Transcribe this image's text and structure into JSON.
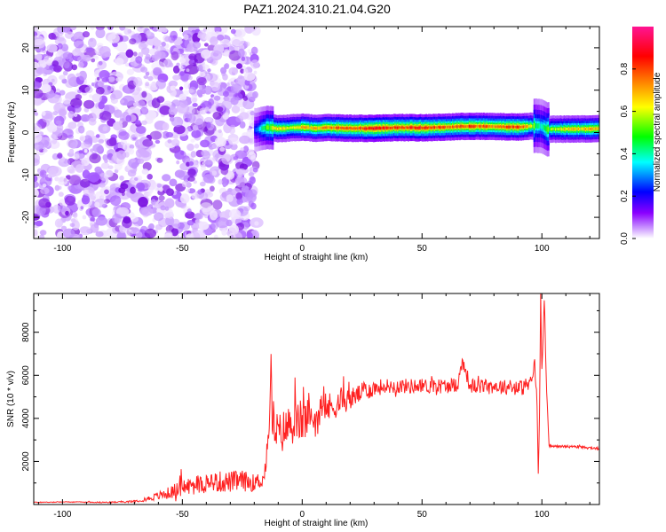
{
  "title": "PAZ1.2024.310.21.04.G20",
  "chart_data": [
    {
      "type": "heatmap",
      "xlabel": "Height of straight line (km)",
      "ylabel": "Frequency (Hz)",
      "xlim": [
        -112,
        124
      ],
      "ylim": [
        -25,
        25
      ],
      "xticks": [
        -100,
        -50,
        0,
        50,
        100
      ],
      "xtick_labels": [
        "-100",
        "-50",
        "0",
        "50",
        "100"
      ],
      "yticks": [
        -20,
        -10,
        0,
        10,
        20
      ],
      "ytick_labels": [
        "-20",
        "-10",
        "0",
        "10",
        "20"
      ],
      "noise_region_x": [
        -112,
        -19
      ],
      "signal_band": {
        "x": [
          -20,
          -15,
          -10,
          -5,
          0,
          5,
          10,
          20,
          30,
          40,
          50,
          60,
          70,
          80,
          90,
          95,
          98,
          100,
          102,
          110,
          124
        ],
        "center_freq_hz": [
          0.6,
          1.2,
          0.9,
          1.1,
          1.3,
          1.0,
          1.2,
          1.0,
          1.0,
          1.2,
          1.1,
          1.3,
          1.5,
          1.4,
          1.3,
          1.5,
          1.6,
          1.4,
          0.8,
          0.8,
          0.9
        ],
        "peak_amplitude": [
          0.25,
          0.55,
          0.7,
          0.6,
          0.75,
          0.72,
          0.8,
          0.85,
          0.9,
          0.85,
          0.9,
          0.8,
          0.85,
          0.8,
          0.85,
          0.7,
          0.45,
          0.4,
          0.55,
          0.7,
          0.75
        ]
      },
      "colorbar": {
        "label": "Normalized spectral amplitude",
        "range": [
          0,
          1
        ],
        "ticks": [
          0.0,
          0.2,
          0.4,
          0.6,
          0.8
        ],
        "tick_labels": [
          "0.0",
          "0.2",
          "0.4",
          "0.6",
          "0.8"
        ],
        "colors": [
          "#ffffff",
          "#8b00ff",
          "#0000ff",
          "#00ffff",
          "#00ff00",
          "#ffff00",
          "#ff7f00",
          "#ff0000",
          "#ff1493"
        ]
      }
    },
    {
      "type": "line",
      "xlabel": "Height of straight line (km)",
      "ylabel": "SNR (10 * v/v)",
      "xlim": [
        -112,
        124
      ],
      "ylim": [
        0,
        9800
      ],
      "xticks": [
        -100,
        -50,
        0,
        50,
        100
      ],
      "xtick_labels": [
        "-100",
        "-50",
        "0",
        "50",
        "100"
      ],
      "yticks": [
        2000,
        4000,
        6000,
        8000
      ],
      "ytick_labels": [
        "2000",
        "4000",
        "6000",
        "8000"
      ],
      "color": "#ff2020",
      "series": [
        {
          "x": [
            -112,
            -100,
            -90,
            -80,
            -70,
            -65,
            -60,
            -55,
            -50,
            -45,
            -40,
            -35,
            -30,
            -25,
            -20,
            -16,
            -14,
            -13,
            -12.5,
            -12,
            -11,
            -10,
            -8,
            -5,
            0,
            5,
            10,
            15,
            20,
            25,
            30,
            35,
            40,
            50,
            60,
            65,
            67,
            70,
            80,
            90,
            95,
            97,
            98,
            98.5,
            99,
            99.5,
            100,
            101,
            102,
            103,
            110,
            124
          ],
          "y": [
            100,
            120,
            110,
            100,
            150,
            250,
            400,
            550,
            800,
            900,
            1000,
            1050,
            1050,
            1100,
            1000,
            1200,
            3000,
            6800,
            3500,
            4000,
            3500,
            3200,
            3400,
            3700,
            3900,
            4000,
            4400,
            4700,
            4900,
            5200,
            5400,
            5500,
            5500,
            5500,
            5500,
            5600,
            6700,
            5500,
            5500,
            5400,
            5500,
            6500,
            4800,
            1300,
            4000,
            9700,
            6200,
            9300,
            5400,
            2700,
            2700,
            2600
          ],
          "noise_amplitude": [
            20,
            20,
            20,
            30,
            50,
            100,
            200,
            300,
            400,
            450,
            500,
            500,
            500,
            500,
            400,
            400,
            600,
            700,
            800,
            900,
            1000,
            1000,
            1000,
            1000,
            1000,
            900,
            800,
            600,
            500,
            450,
            400,
            350,
            350,
            350,
            350,
            350,
            350,
            350,
            350,
            350,
            400,
            300,
            300,
            200,
            200,
            200,
            200,
            200,
            200,
            60,
            60,
            60
          ]
        }
      ]
    }
  ]
}
